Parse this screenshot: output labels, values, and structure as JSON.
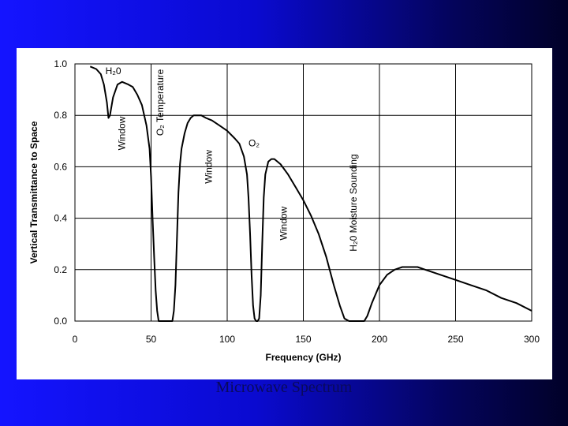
{
  "slide": {
    "caption": "Microwave Spectrum",
    "colors": {
      "background_start": "#1414ff",
      "background_end": "#010128",
      "plot": "#ffffff",
      "line": "#000000"
    }
  },
  "chart_data": {
    "type": "line",
    "title": "",
    "xlabel": "Frequency (GHz)",
    "ylabel": "Vertical Transmittance to Space",
    "xlim": [
      0,
      300
    ],
    "ylim": [
      0,
      1
    ],
    "grid": true,
    "x_ticks": [
      0,
      50,
      100,
      150,
      200,
      250,
      300
    ],
    "x_tick_labels": [
      "0",
      "50",
      "100",
      "150",
      "200",
      "250",
      "300"
    ],
    "y_ticks": [
      0,
      0.2,
      0.4,
      0.6,
      0.8,
      1.0
    ],
    "y_tick_labels": [
      "0.0",
      "0.2",
      "0.4",
      "0.6",
      "0.8",
      "1.0"
    ],
    "series": [
      {
        "x": [
          10,
          14,
          17,
          19,
          21,
          22,
          23,
          25,
          28,
          31,
          35,
          38,
          41,
          44,
          47,
          49,
          50,
          51,
          52,
          53,
          54,
          55,
          56,
          60,
          64,
          65,
          66,
          67,
          68,
          69,
          70,
          72,
          74,
          76,
          78,
          80,
          83,
          86,
          90,
          95,
          100,
          105,
          108,
          111,
          113,
          114,
          115,
          116,
          117,
          118,
          119,
          120,
          121,
          122,
          123,
          124,
          125,
          127,
          129,
          131,
          135,
          140,
          145,
          150,
          155,
          160,
          165,
          170,
          174,
          177,
          180,
          185,
          188,
          190,
          192,
          195,
          200,
          205,
          210,
          215,
          220,
          225,
          230,
          240,
          250,
          260,
          270,
          280,
          290,
          300
        ],
        "y": [
          0.99,
          0.98,
          0.96,
          0.92,
          0.85,
          0.79,
          0.8,
          0.87,
          0.92,
          0.93,
          0.92,
          0.91,
          0.88,
          0.84,
          0.76,
          0.67,
          0.56,
          0.4,
          0.25,
          0.12,
          0.04,
          0.0,
          0.0,
          0.0,
          0.0,
          0.04,
          0.14,
          0.32,
          0.5,
          0.61,
          0.67,
          0.73,
          0.77,
          0.79,
          0.8,
          0.8,
          0.8,
          0.79,
          0.78,
          0.76,
          0.74,
          0.71,
          0.69,
          0.64,
          0.57,
          0.48,
          0.34,
          0.18,
          0.06,
          0.01,
          0.0,
          0.0,
          0.01,
          0.1,
          0.3,
          0.48,
          0.57,
          0.62,
          0.63,
          0.63,
          0.61,
          0.57,
          0.52,
          0.47,
          0.41,
          0.34,
          0.25,
          0.14,
          0.06,
          0.01,
          0.0,
          0.0,
          0.0,
          0.0,
          0.02,
          0.07,
          0.14,
          0.18,
          0.2,
          0.21,
          0.21,
          0.21,
          0.2,
          0.18,
          0.16,
          0.14,
          0.12,
          0.09,
          0.07,
          0.04
        ]
      }
    ],
    "annotations": [
      {
        "text": "H₂0",
        "x": 20,
        "y": 0.96,
        "orientation": "horizontal",
        "anchor": "start"
      },
      {
        "text": "Window",
        "x": 33,
        "y": 0.73,
        "orientation": "vertical",
        "anchor": "middle"
      },
      {
        "text": "O₂ Temperature",
        "x": 58,
        "y": 0.85,
        "orientation": "vertical",
        "anchor": "middle"
      },
      {
        "text": "Window",
        "x": 90,
        "y": 0.6,
        "orientation": "vertical",
        "anchor": "middle"
      },
      {
        "text": "O₂",
        "x": 114,
        "y": 0.68,
        "orientation": "horizontal",
        "anchor": "start"
      },
      {
        "text": "Window",
        "x": 139,
        "y": 0.38,
        "orientation": "vertical",
        "anchor": "middle"
      },
      {
        "text": "H₂0 Moisture Sounding",
        "x": 185,
        "y": 0.46,
        "orientation": "vertical",
        "anchor": "middle"
      }
    ]
  }
}
